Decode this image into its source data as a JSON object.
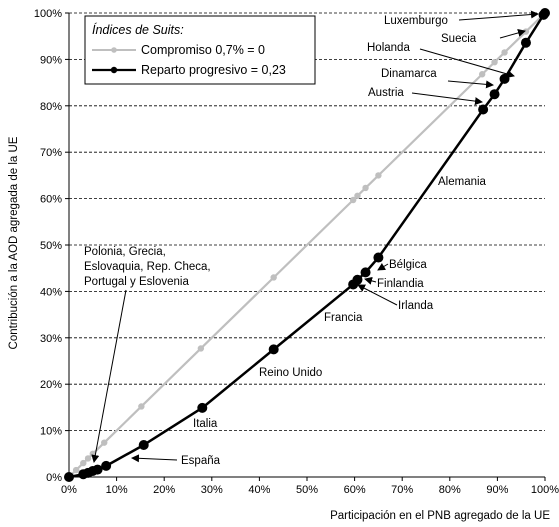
{
  "chart_data": {
    "type": "line",
    "xlabel": "Participación en el PNB agregado de la UE",
    "ylabel": "Contribución a la AOD agregada de la UE",
    "xlim": [
      0,
      100
    ],
    "ylim": [
      0,
      100
    ],
    "x_ticks": [
      "0%",
      "10%",
      "20%",
      "30%",
      "40%",
      "50%",
      "60%",
      "70%",
      "80%",
      "90%",
      "100%"
    ],
    "y_ticks": [
      "0%",
      "10%",
      "20%",
      "30%",
      "40%",
      "50%",
      "60%",
      "70%",
      "80%",
      "90%",
      "100%"
    ],
    "grid": "horizontal dashed",
    "legend": {
      "title": "Índices de Suits:",
      "position": "top-left",
      "entries": [
        "Compromiso 0,7% = 0",
        "Reparto progresivo = 0,23"
      ]
    },
    "series": [
      {
        "name": "Compromiso 0,7% = 0",
        "color": "#bfbfbf",
        "x": [
          0,
          1.5,
          3,
          4,
          5,
          7.4,
          15.2,
          27.7,
          43,
          59.7,
          60.6,
          62.3,
          65,
          86.8,
          89.4,
          91.5,
          96,
          99.7,
          100
        ],
        "y": [
          0,
          1.5,
          3,
          4,
          5,
          7.4,
          15.2,
          27.7,
          43,
          59.7,
          60.6,
          62.3,
          65,
          86.8,
          89.4,
          91.5,
          96,
          99.7,
          100
        ]
      },
      {
        "name": "Reparto progresivo = 0,23",
        "color": "#000000",
        "x": [
          0,
          3,
          4,
          5,
          6,
          7.8,
          15.7,
          28,
          43,
          59.7,
          60.6,
          62.3,
          65,
          87,
          89.4,
          91.5,
          96,
          99.7,
          100
        ],
        "y": [
          0,
          0.6,
          0.9,
          1.3,
          1.6,
          2.4,
          6.9,
          14.9,
          27.5,
          41.5,
          42.5,
          44.1,
          47.3,
          79.2,
          82.5,
          85.8,
          93.6,
          99.6,
          100
        ]
      }
    ],
    "annotations": [
      {
        "label": "Luxemburgo"
      },
      {
        "label": "Suecia"
      },
      {
        "label": "Holanda"
      },
      {
        "label": "Dinamarca"
      },
      {
        "label": "Austria"
      },
      {
        "label": "Alemania"
      },
      {
        "label": "Bélgica"
      },
      {
        "label": "Finlandia"
      },
      {
        "label": "Irlanda"
      },
      {
        "label": "Francia"
      },
      {
        "label": "Reino Unido"
      },
      {
        "label": "Italia"
      },
      {
        "label": "España"
      },
      {
        "label": "Polonia, Grecia,\nEslovaquia, Rep. Checa,\nPortugal y Eslovenia"
      }
    ]
  }
}
